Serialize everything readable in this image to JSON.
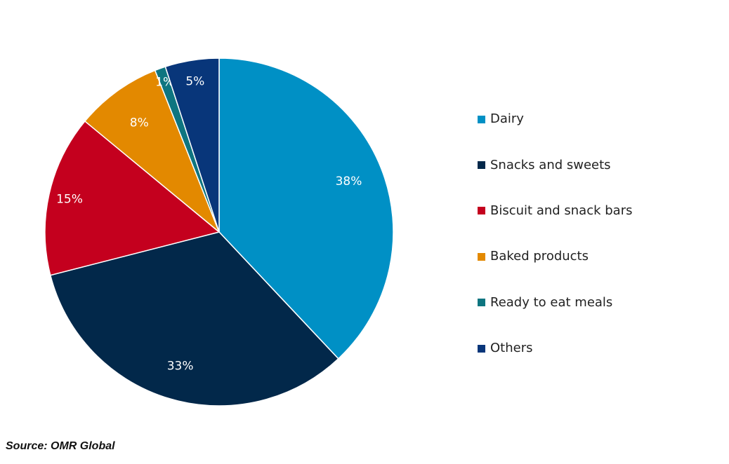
{
  "chart_data": {
    "type": "pie",
    "title": "",
    "categories": [
      "Dairy",
      "Snacks and sweets",
      "Biscuit and snack bars",
      "Baked products",
      "Ready to eat meals",
      "Others"
    ],
    "values": [
      38,
      33,
      15,
      8,
      1,
      5
    ],
    "labels": [
      "38%",
      "33%",
      "15%",
      "8%",
      "1%",
      "5%"
    ],
    "colors": [
      "#0090C5",
      "#02284A",
      "#C4001E",
      "#E38900",
      "#0E7580",
      "#08367A"
    ],
    "legend_position": "right",
    "start_angle_deg": 0,
    "direction": "clockwise"
  },
  "legend": {
    "items": [
      {
        "label": "Dairy",
        "color": "#0090C5"
      },
      {
        "label": "Snacks and sweets",
        "color": "#02284A"
      },
      {
        "label": "Biscuit and snack bars",
        "color": "#C4001E"
      },
      {
        "label": "Baked products",
        "color": "#E38900"
      },
      {
        "label": "Ready to eat meals",
        "color": "#0E7580"
      },
      {
        "label": "Others",
        "color": "#08367A"
      }
    ]
  },
  "source": "Source: OMR Global"
}
